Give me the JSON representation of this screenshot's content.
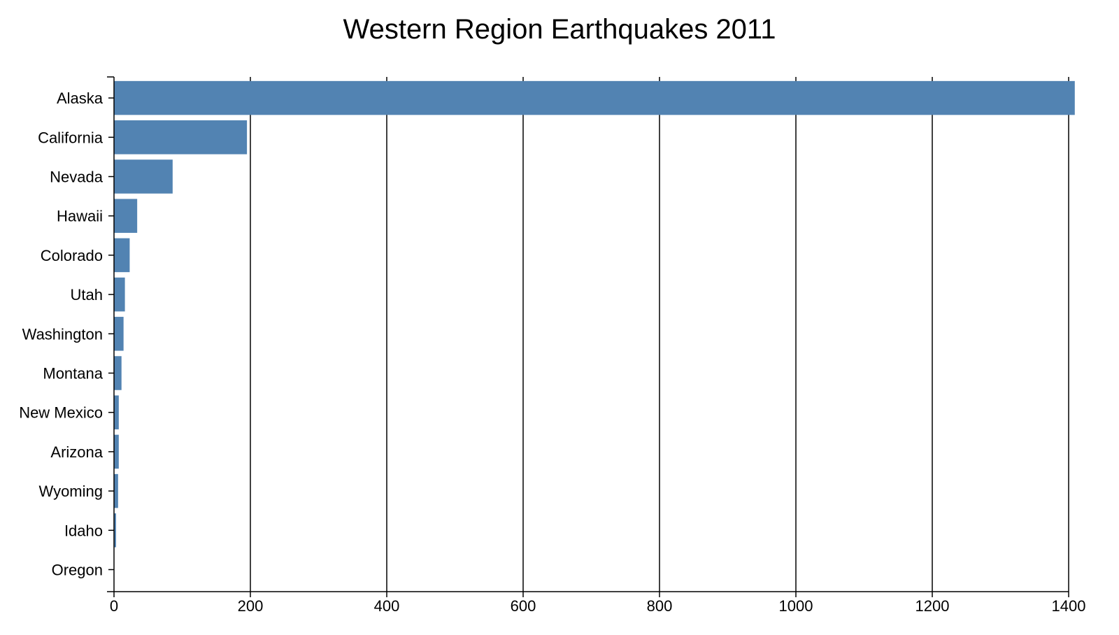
{
  "chart_data": {
    "type": "bar",
    "orientation": "horizontal",
    "title": "Western Region Earthquakes 2011",
    "xlabel": "",
    "ylabel": "",
    "xlim": [
      0,
      1400
    ],
    "x_ticks": [
      0,
      200,
      400,
      600,
      800,
      1000,
      1200,
      1400
    ],
    "grid": "vertical",
    "bar_color": "#5283b2",
    "categories": [
      "Alaska",
      "California",
      "Nevada",
      "Hawaii",
      "Colorado",
      "Utah",
      "Washington",
      "Montana",
      "New Mexico",
      "Arizona",
      "Wyoming",
      "Idaho",
      "Oregon"
    ],
    "values": [
      1409,
      195,
      86,
      34,
      23,
      16,
      14,
      11,
      7,
      7,
      6,
      3,
      0
    ]
  }
}
